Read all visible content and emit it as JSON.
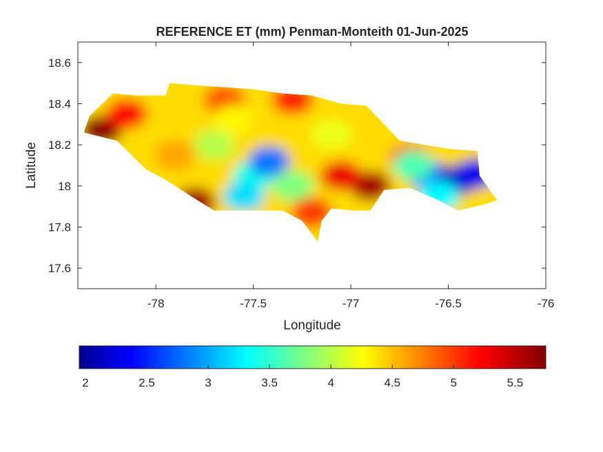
{
  "chart_data": {
    "type": "heatmap",
    "title": "REFERENCE ET (mm) Penman-Monteith 01-Jun-2025",
    "xlabel": "Longitude",
    "ylabel": "Latitude",
    "xlim": [
      -78.4,
      -76
    ],
    "ylim": [
      17.5,
      18.7
    ],
    "x_ticks": [
      -78,
      -77.5,
      -77,
      -76.5,
      -76
    ],
    "y_ticks": [
      17.6,
      17.8,
      18,
      18.2,
      18.4,
      18.6
    ],
    "x_tick_labels": [
      "-78",
      "-77.5",
      "-77",
      "-76.5",
      "-76"
    ],
    "y_tick_labels": [
      "17.6",
      "17.8",
      "18",
      "18.2",
      "18.4",
      "18.6"
    ],
    "colormap": "jet",
    "colorbar": {
      "orientation": "horizontal",
      "placement": "bottom",
      "range": [
        1.95,
        5.75
      ],
      "ticks": [
        2,
        2.5,
        3,
        3.5,
        4,
        4.5,
        5,
        5.5
      ],
      "tick_labels": [
        "2",
        "2.5",
        "3",
        "3.5",
        "4",
        "4.5",
        "5",
        "5.5"
      ]
    },
    "grid": false,
    "region_outline": [
      [
        -78.37,
        18.26
      ],
      [
        -78.34,
        18.34
      ],
      [
        -78.22,
        18.45
      ],
      [
        -78.1,
        18.44
      ],
      [
        -77.95,
        18.44
      ],
      [
        -77.93,
        18.5
      ],
      [
        -77.8,
        18.49
      ],
      [
        -77.65,
        18.48
      ],
      [
        -77.5,
        18.47
      ],
      [
        -77.35,
        18.45
      ],
      [
        -77.2,
        18.44
      ],
      [
        -77.05,
        18.4
      ],
      [
        -76.92,
        18.39
      ],
      [
        -76.86,
        18.33
      ],
      [
        -76.75,
        18.22
      ],
      [
        -76.62,
        18.2
      ],
      [
        -76.5,
        18.18
      ],
      [
        -76.35,
        18.17
      ],
      [
        -76.34,
        18.05
      ],
      [
        -76.25,
        17.93
      ],
      [
        -76.32,
        17.91
      ],
      [
        -76.45,
        17.88
      ],
      [
        -76.55,
        17.93
      ],
      [
        -76.7,
        17.99
      ],
      [
        -76.83,
        17.98
      ],
      [
        -76.9,
        17.88
      ],
      [
        -76.98,
        17.88
      ],
      [
        -77.1,
        17.89
      ],
      [
        -77.15,
        17.83
      ],
      [
        -77.17,
        17.73
      ],
      [
        -77.25,
        17.83
      ],
      [
        -77.35,
        17.88
      ],
      [
        -77.55,
        17.88
      ],
      [
        -77.7,
        17.88
      ],
      [
        -77.82,
        17.95
      ],
      [
        -77.95,
        18.03
      ],
      [
        -78.05,
        18.08
      ],
      [
        -78.2,
        18.22
      ],
      [
        -78.37,
        18.26
      ]
    ],
    "value_hotspots": [
      {
        "lon": -77.0,
        "lat": 18.1,
        "value": 4.4
      },
      {
        "lon": -78.28,
        "lat": 18.27,
        "value": 5.7
      },
      {
        "lon": -78.15,
        "lat": 18.35,
        "value": 5.2
      },
      {
        "lon": -77.8,
        "lat": 17.92,
        "value": 5.6
      },
      {
        "lon": -76.9,
        "lat": 18.0,
        "value": 5.6
      },
      {
        "lon": -77.05,
        "lat": 18.05,
        "value": 5.3
      },
      {
        "lon": -77.3,
        "lat": 18.42,
        "value": 5.1
      },
      {
        "lon": -77.65,
        "lat": 18.42,
        "value": 4.9
      },
      {
        "lon": -76.7,
        "lat": 18.13,
        "value": 5.1
      },
      {
        "lon": -77.2,
        "lat": 17.87,
        "value": 5.0
      },
      {
        "lon": -77.5,
        "lat": 18.05,
        "value": 3.4
      },
      {
        "lon": -77.42,
        "lat": 18.12,
        "value": 2.8
      },
      {
        "lon": -77.55,
        "lat": 17.95,
        "value": 3.2
      },
      {
        "lon": -77.3,
        "lat": 18.0,
        "value": 3.8
      },
      {
        "lon": -77.7,
        "lat": 18.2,
        "value": 4.0
      },
      {
        "lon": -77.1,
        "lat": 18.25,
        "value": 4.2
      },
      {
        "lon": -76.6,
        "lat": 18.05,
        "value": 2.8
      },
      {
        "lon": -76.45,
        "lat": 18.03,
        "value": 2.1
      },
      {
        "lon": -76.36,
        "lat": 18.06,
        "value": 2.3
      },
      {
        "lon": -76.55,
        "lat": 17.95,
        "value": 3.3
      },
      {
        "lon": -76.68,
        "lat": 18.1,
        "value": 3.6
      },
      {
        "lon": -77.9,
        "lat": 18.15,
        "value": 4.6
      },
      {
        "lon": -77.6,
        "lat": 18.32,
        "value": 4.3
      }
    ]
  }
}
